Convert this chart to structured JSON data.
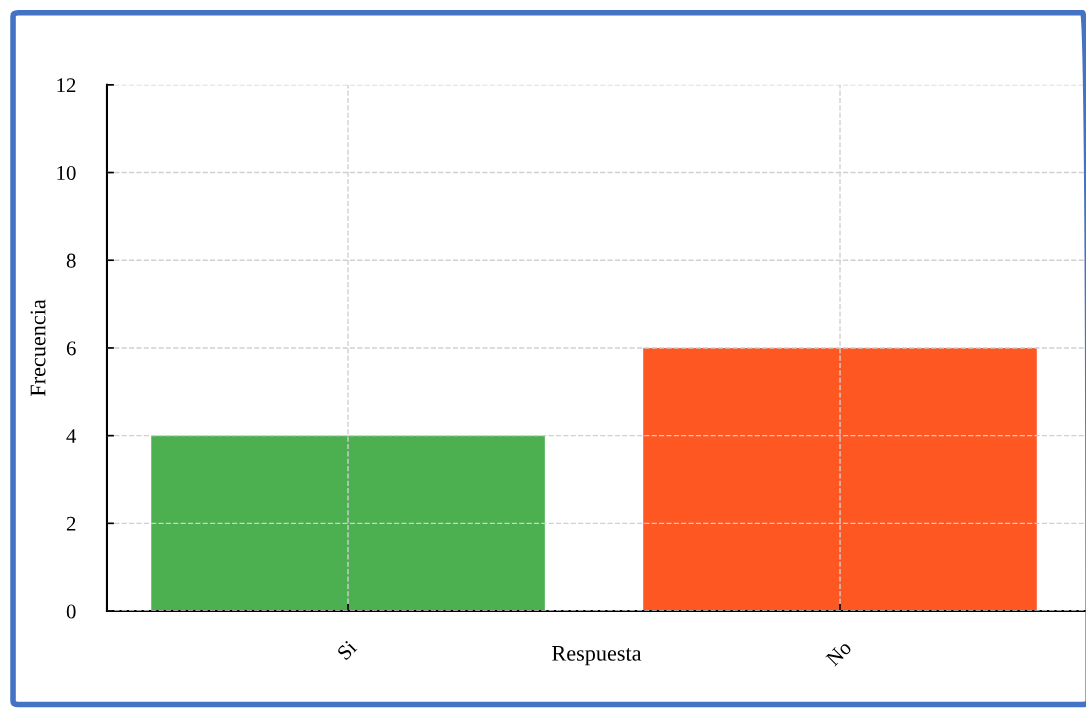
{
  "chart_data": {
    "type": "bar",
    "xlabel": "Respuesta",
    "ylabel": "Frecuencia",
    "categories": [
      "Si",
      "No"
    ],
    "values": [
      4,
      6
    ],
    "colors": [
      "#4caf50",
      "#ff5722"
    ],
    "ylim": [
      0,
      12
    ],
    "yticks": [
      0,
      2,
      4,
      6,
      8,
      10,
      12
    ],
    "grid": true
  }
}
